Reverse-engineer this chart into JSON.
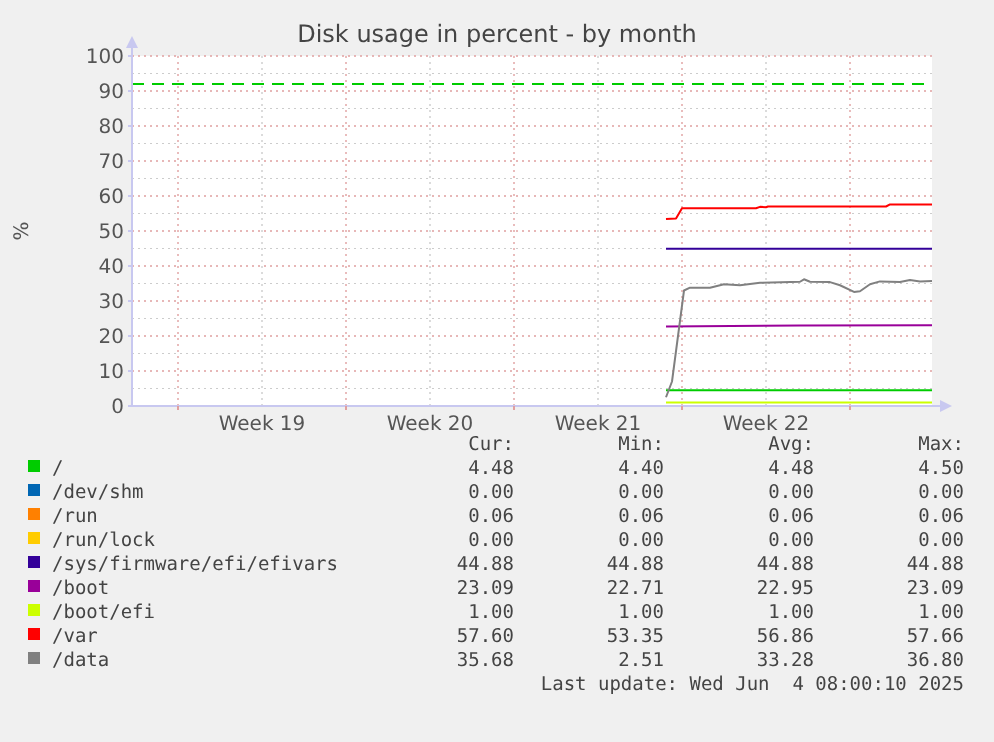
{
  "chart_data": {
    "type": "line",
    "title": "Disk usage in percent - by month",
    "ylabel": "%",
    "xlim": [
      "2025-05-03T02:00",
      "2025-06-05T10:00"
    ],
    "xticks": [
      {
        "value": "2025-05-05",
        "label": null
      },
      {
        "value": "2025-05-08T12:00",
        "label": "Week 19"
      },
      {
        "value": "2025-05-12",
        "label": null
      },
      {
        "value": "2025-05-15T12:00",
        "label": "Week 20"
      },
      {
        "value": "2025-05-19",
        "label": null
      },
      {
        "value": "2025-05-22T12:00",
        "label": "Week 21"
      },
      {
        "value": "2025-05-26",
        "label": null
      },
      {
        "value": "2025-05-29T12:00",
        "label": "Week 22"
      },
      {
        "value": "2025-06-02",
        "label": null
      }
    ],
    "ylim": [
      0,
      100
    ],
    "yticks": [
      0,
      10,
      20,
      30,
      40,
      50,
      60,
      70,
      80,
      90,
      100
    ],
    "grid": true,
    "legend": "bottom",
    "line_style": "solid",
    "marker": "none",
    "series": [
      {
        "name": "/",
        "color": "#00cc00",
        "x": [
          "2025-05-25T08:00",
          "2025-06-05T10:00"
        ],
        "values": [
          4.5,
          4.5
        ]
      },
      {
        "name": "/dev/shm",
        "color": "#0066b3",
        "values": [
          null,
          null
        ]
      },
      {
        "name": "/run",
        "color": "#ff8000",
        "values": [
          null,
          null
        ]
      },
      {
        "name": "/run/lock",
        "color": "#ffcc00",
        "values": [
          null,
          null
        ]
      },
      {
        "name": "/sys/firmware/efi/efivars",
        "color": "#330099",
        "x": [
          "2025-05-25T08:00",
          "2025-06-05T10:00"
        ],
        "values": [
          44.9,
          44.9
        ]
      },
      {
        "name": "/boot",
        "color": "#990099",
        "x": [
          "2025-05-25T08:00",
          "2025-05-30T22:00",
          "2025-06-05T10:00"
        ],
        "values": [
          22.7,
          23.0,
          23.1
        ]
      },
      {
        "name": "/boot/efi",
        "color": "#ccff00",
        "x": [
          "2025-05-25T08:00",
          "2025-06-05T10:00"
        ],
        "values": [
          1.0,
          1.0
        ]
      },
      {
        "name": "/var",
        "color": "#ff0000",
        "x": [
          "2025-05-25T08:00",
          "2025-05-25T18:00",
          "2025-05-26T00:00",
          "2025-05-29T02:00",
          "2025-05-29T06:00",
          "2025-05-29T12:00",
          "2025-05-29T14:00",
          "2025-06-03T12:00",
          "2025-06-03T16:00",
          "2025-06-05T10:00"
        ],
        "values": [
          53.4,
          53.6,
          56.5,
          56.5,
          56.9,
          56.8,
          57.0,
          57.0,
          57.6,
          57.6
        ]
      },
      {
        "name": "/data",
        "color": "#808080",
        "x": [
          "2025-05-25T08:00",
          "2025-05-25T14:00",
          "2025-05-25T20:00",
          "2025-05-26T02:00",
          "2025-05-26T08:00",
          "2025-05-27T04:00",
          "2025-05-27T18:00",
          "2025-05-28T10:00",
          "2025-05-29T06:00",
          "2025-05-30T22:00",
          "2025-05-31T02:00",
          "2025-05-31T08:00",
          "2025-06-01T04:00",
          "2025-06-01T14:00",
          "2025-06-02T04:00",
          "2025-06-02T10:00",
          "2025-06-02T20:00",
          "2025-06-03T06:00",
          "2025-06-04T02:00",
          "2025-06-04T12:00",
          "2025-06-04T22:00",
          "2025-06-05T10:00"
        ],
        "values": [
          2.5,
          7,
          20,
          33,
          33.8,
          33.8,
          34.8,
          34.5,
          35.2,
          35.5,
          36.2,
          35.5,
          35.4,
          34.5,
          32.6,
          32.8,
          34.8,
          35.6,
          35.4,
          36.0,
          35.6,
          35.7
        ]
      }
    ],
    "ref_lines": [
      {
        "axis": "y",
        "value": 92,
        "color": "#00cc00",
        "line_style": "dashed"
      }
    ],
    "annotations": [
      "Cur:",
      "Min:",
      "Avg:",
      "Max:",
      "4.48",
      "4.40",
      "4.48",
      "4.50",
      "0.00",
      "0.00",
      "0.00",
      "0.00",
      "0.06",
      "0.06",
      "0.06",
      "0.06",
      "0.00",
      "0.00",
      "0.00",
      "0.00",
      "44.88",
      "44.88",
      "44.88",
      "44.88",
      "23.09",
      "22.71",
      "22.95",
      "23.09",
      "1.00",
      "1.00",
      "1.00",
      "1.00",
      "57.60",
      "53.35",
      "56.86",
      "57.66",
      "35.68",
      "2.51",
      "33.28",
      "36.80",
      "Last update: Wed Jun  4 08:00:10 2025"
    ]
  }
}
